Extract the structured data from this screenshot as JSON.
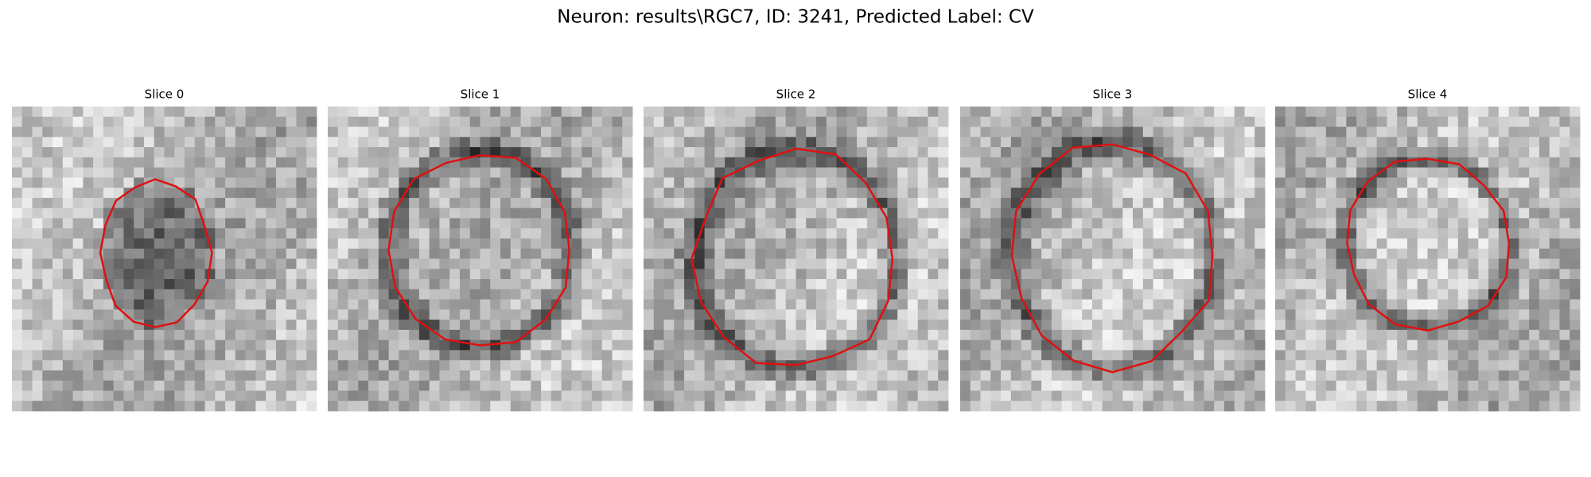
{
  "title": "Neuron: results\\RGC7, ID: 3241, Predicted Label: CV",
  "panels": [
    {
      "title": "Slice 0"
    },
    {
      "title": "Slice 1"
    },
    {
      "title": "Slice 2"
    },
    {
      "title": "Slice 3"
    },
    {
      "title": "Slice 4"
    }
  ]
}
